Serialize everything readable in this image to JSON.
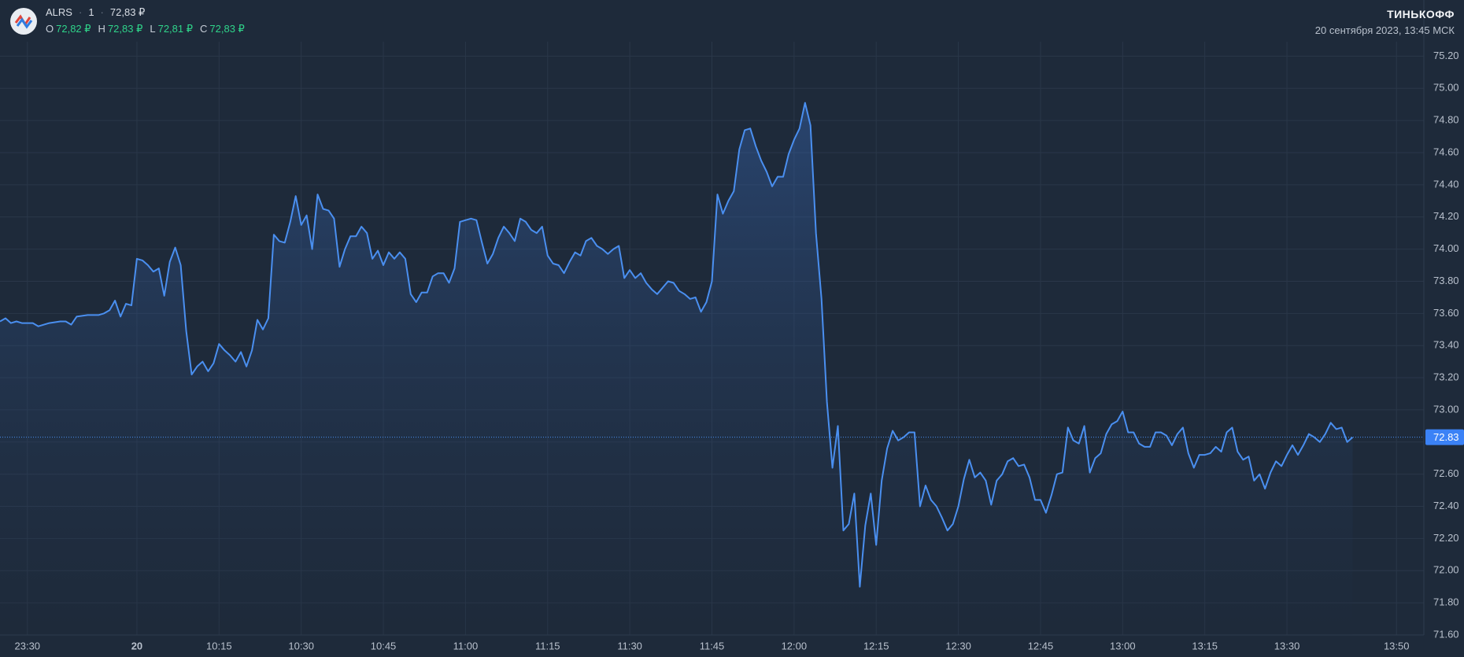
{
  "header": {
    "ticker": "ALRS",
    "interval": "1",
    "price": "72,83 ₽",
    "ohlc": [
      {
        "label": "O",
        "value": "72,82 ₽"
      },
      {
        "label": "H",
        "value": "72,83 ₽"
      },
      {
        "label": "L",
        "value": "72,81 ₽"
      },
      {
        "label": "C",
        "value": "72,83 ₽"
      }
    ],
    "brand": "ТИНЬКОФФ",
    "datetime": "20 сентября 2023, 13:45 МСК"
  },
  "chart_data": {
    "type": "area",
    "xlim": [
      "23:25",
      "13:55"
    ],
    "ylim": [
      71.6,
      75.29
    ],
    "xticks": [
      "23:30",
      {
        "value": "10:00",
        "label": "20"
      },
      "10:15",
      "10:30",
      "10:45",
      "11:00",
      "11:15",
      "11:30",
      "11:45",
      "12:00",
      "12:15",
      "12:30",
      "12:45",
      "13:00",
      "13:15",
      "13:30",
      "13:50"
    ],
    "yticks": [
      {
        "value": 71.6,
        "label": "71.60"
      },
      {
        "value": 71.8,
        "label": "71.80"
      },
      {
        "value": 72.0,
        "label": "72.00"
      },
      {
        "value": 72.2,
        "label": "72.20"
      },
      {
        "value": 72.4,
        "label": "72.40"
      },
      {
        "value": 72.6,
        "label": "72.60"
      },
      {
        "value": 72.8,
        "label": "72.80"
      },
      {
        "value": 73.0,
        "label": "73.00"
      },
      {
        "value": 73.2,
        "label": "73.20"
      },
      {
        "value": 73.4,
        "label": "73.40"
      },
      {
        "value": 73.6,
        "label": "73.60"
      },
      {
        "value": 73.8,
        "label": "73.80"
      },
      {
        "value": 74.0,
        "label": "74.00"
      },
      {
        "value": 74.2,
        "label": "74.20"
      },
      {
        "value": 74.4,
        "label": "74.40"
      },
      {
        "value": 74.6,
        "label": "74.60"
      },
      {
        "value": 74.8,
        "label": "74.80"
      },
      {
        "value": 75.0,
        "label": "75.00"
      },
      {
        "value": 75.2,
        "label": "75.20"
      }
    ],
    "grid": true,
    "color": "#4a8ff0",
    "price_line": {
      "value": 72.83,
      "label": "72.83"
    },
    "x": [
      "23:25",
      "23:26",
      "23:27",
      "23:28",
      "23:29",
      "23:31",
      "23:32",
      "23:34",
      "23:36",
      "23:37",
      "23:38",
      "23:39",
      "23:41",
      "23:43",
      "23:44",
      "23:45",
      "23:46",
      "23:47",
      "23:48",
      "23:49",
      "10:00",
      "10:01",
      "10:02",
      "10:03",
      "10:04",
      "10:05",
      "10:06",
      "10:07",
      "10:08",
      "10:09",
      "10:10",
      "10:11",
      "10:12",
      "10:13",
      "10:14",
      "10:15",
      "10:16",
      "10:17",
      "10:18",
      "10:19",
      "10:20",
      "10:21",
      "10:22",
      "10:23",
      "10:24",
      "10:25",
      "10:26",
      "10:27",
      "10:28",
      "10:29",
      "10:30",
      "10:31",
      "10:32",
      "10:33",
      "10:34",
      "10:35",
      "10:36",
      "10:37",
      "10:38",
      "10:39",
      "10:40",
      "10:41",
      "10:42",
      "10:43",
      "10:44",
      "10:45",
      "10:46",
      "10:47",
      "10:48",
      "10:49",
      "10:50",
      "10:51",
      "10:52",
      "10:53",
      "10:54",
      "10:55",
      "10:56",
      "10:57",
      "10:58",
      "10:59",
      "11:00",
      "11:01",
      "11:02",
      "11:03",
      "11:04",
      "11:05",
      "11:06",
      "11:07",
      "11:08",
      "11:09",
      "11:10",
      "11:11",
      "11:12",
      "11:13",
      "11:14",
      "11:15",
      "11:16",
      "11:17",
      "11:18",
      "11:19",
      "11:20",
      "11:21",
      "11:22",
      "11:23",
      "11:24",
      "11:25",
      "11:26",
      "11:27",
      "11:28",
      "11:29",
      "11:30",
      "11:31",
      "11:32",
      "11:33",
      "11:34",
      "11:35",
      "11:36",
      "11:37",
      "11:38",
      "11:39",
      "11:40",
      "11:41",
      "11:42",
      "11:43",
      "11:44",
      "11:45",
      "11:46",
      "11:47",
      "11:48",
      "11:49",
      "11:50",
      "11:51",
      "11:52",
      "11:53",
      "11:54",
      "11:55",
      "11:56",
      "11:57",
      "11:58",
      "11:59",
      "12:00",
      "12:01",
      "12:02",
      "12:03",
      "12:04",
      "12:05",
      "12:06",
      "12:07",
      "12:08",
      "12:09",
      "12:10",
      "12:11",
      "12:12",
      "12:13",
      "12:14",
      "12:15",
      "12:16",
      "12:17",
      "12:18",
      "12:19",
      "12:20",
      "12:21",
      "12:22",
      "12:23",
      "12:24",
      "12:25",
      "12:26",
      "12:27",
      "12:28",
      "12:29",
      "12:30",
      "12:31",
      "12:32",
      "12:33",
      "12:34",
      "12:35",
      "12:36",
      "12:37",
      "12:38",
      "12:39",
      "12:40",
      "12:41",
      "12:42",
      "12:43",
      "12:44",
      "12:45",
      "12:46",
      "12:47",
      "12:48",
      "12:49",
      "12:50",
      "12:51",
      "12:52",
      "12:53",
      "12:54",
      "12:55",
      "12:56",
      "12:57",
      "12:58",
      "12:59",
      "13:00",
      "13:01",
      "13:02",
      "13:03",
      "13:04",
      "13:05",
      "13:06",
      "13:07",
      "13:08",
      "13:09",
      "13:10",
      "13:11",
      "13:12",
      "13:13",
      "13:14",
      "13:15",
      "13:16",
      "13:17",
      "13:18",
      "13:19",
      "13:20",
      "13:21",
      "13:22",
      "13:23",
      "13:24",
      "13:25",
      "13:26",
      "13:27",
      "13:28",
      "13:29",
      "13:30",
      "13:31",
      "13:32",
      "13:33",
      "13:34",
      "13:35",
      "13:36",
      "13:37",
      "13:38",
      "13:39",
      "13:40",
      "13:41",
      "13:42"
    ],
    "values": [
      73.55,
      73.57,
      73.54,
      73.55,
      73.54,
      73.54,
      73.52,
      73.54,
      73.55,
      73.55,
      73.53,
      73.58,
      73.59,
      73.59,
      73.6,
      73.62,
      73.68,
      73.58,
      73.66,
      73.65,
      73.94,
      73.93,
      73.9,
      73.86,
      73.88,
      73.71,
      73.92,
      74.01,
      73.9,
      73.49,
      73.22,
      73.27,
      73.3,
      73.24,
      73.29,
      73.41,
      73.37,
      73.34,
      73.3,
      73.36,
      73.27,
      73.37,
      73.56,
      73.5,
      73.57,
      74.09,
      74.05,
      74.04,
      74.17,
      74.33,
      74.15,
      74.21,
      74.0,
      74.34,
      74.25,
      74.24,
      74.19,
      73.89,
      74.0,
      74.08,
      74.08,
      74.14,
      74.1,
      73.94,
      73.99,
      73.9,
      73.98,
      73.94,
      73.98,
      73.94,
      73.72,
      73.67,
      73.73,
      73.73,
      73.83,
      73.85,
      73.85,
      73.79,
      73.88,
      74.17,
      74.18,
      74.19,
      74.18,
      74.04,
      73.91,
      73.97,
      74.07,
      74.14,
      74.1,
      74.05,
      74.19,
      74.17,
      74.12,
      74.1,
      74.14,
      73.96,
      73.91,
      73.9,
      73.85,
      73.92,
      73.98,
      73.96,
      74.05,
      74.07,
      74.02,
      74.0,
      73.97,
      74.0,
      74.02,
      73.82,
      73.87,
      73.82,
      73.85,
      73.79,
      73.75,
      73.72,
      73.76,
      73.8,
      73.79,
      73.74,
      73.72,
      73.69,
      73.7,
      73.61,
      73.67,
      73.8,
      74.34,
      74.22,
      74.3,
      74.36,
      74.62,
      74.74,
      74.75,
      74.64,
      74.55,
      74.48,
      74.39,
      74.45,
      74.45,
      74.59,
      74.68,
      74.75,
      74.91,
      74.77,
      74.1,
      73.69,
      73.05,
      72.64,
      72.9,
      72.25,
      72.29,
      72.48,
      71.9,
      72.28,
      72.48,
      72.16,
      72.56,
      72.76,
      72.87,
      72.81,
      72.83,
      72.86,
      72.86,
      72.4,
      72.53,
      72.44,
      72.4,
      72.33,
      72.25,
      72.29,
      72.4,
      72.57,
      72.69,
      72.58,
      72.61,
      72.56,
      72.41,
      72.56,
      72.6,
      72.68,
      72.7,
      72.65,
      72.66,
      72.58,
      72.44,
      72.44,
      72.36,
      72.47,
      72.6,
      72.61,
      72.89,
      72.81,
      72.79,
      72.9,
      72.61,
      72.7,
      72.73,
      72.85,
      72.91,
      72.93,
      72.99,
      72.86,
      72.86,
      72.79,
      72.77,
      72.77,
      72.86,
      72.86,
      72.84,
      72.78,
      72.85,
      72.89,
      72.73,
      72.64,
      72.72,
      72.72,
      72.73,
      72.77,
      72.74,
      72.86,
      72.89,
      72.74,
      72.69,
      72.71,
      72.56,
      72.6,
      72.51,
      72.61,
      72.68,
      72.65,
      72.72,
      72.78,
      72.72,
      72.78,
      72.85,
      72.83,
      72.8,
      72.85,
      72.92,
      72.88,
      72.89,
      72.8,
      72.83
    ]
  }
}
